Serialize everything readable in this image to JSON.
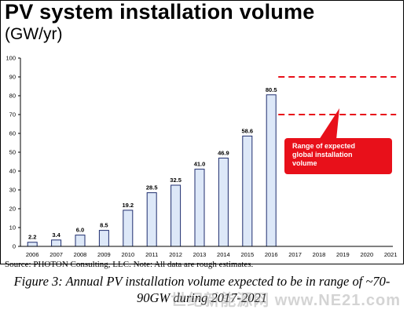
{
  "header": {
    "title": "PV system installation volume",
    "unit": "(GW/yr)"
  },
  "chart_data": {
    "type": "bar",
    "title": "PV system installation volume",
    "ylabel": "(GW/yr)",
    "xlabel": "",
    "ylim": [
      0,
      100
    ],
    "yticks": [
      0,
      10,
      20,
      30,
      40,
      50,
      60,
      70,
      80,
      90,
      100
    ],
    "categories": [
      "2006",
      "2007",
      "2008",
      "2009",
      "2010",
      "2011",
      "2012",
      "2013",
      "2014",
      "2015",
      "2016",
      "2017",
      "2018",
      "2019",
      "2020",
      "2021"
    ],
    "values": [
      2.2,
      3.4,
      6.0,
      8.5,
      19.2,
      28.5,
      32.5,
      41.0,
      46.9,
      58.6,
      80.5,
      null,
      null,
      null,
      null,
      null
    ],
    "data_labels": [
      "2.2",
      "3.4",
      "6.0",
      "8.5",
      "19.2",
      "28.5",
      "32.5",
      "41.0",
      "46.9",
      "58.6",
      "80.5",
      "",
      "",
      "",
      "",
      ""
    ],
    "expected_range": {
      "low": 70,
      "high": 90,
      "from_category": "2016",
      "to_category": "2021",
      "label": "Range of expected global installation volume"
    },
    "colors": {
      "bar_fill": "#dde8f8",
      "bar_stroke": "#1f2d6e",
      "range_line": "#e8101a",
      "callout_fill": "#e8101a",
      "callout_text": "#ffffff",
      "axis": "#000000"
    },
    "grid": false
  },
  "footer": {
    "source": "Source: PHOTON Consulting, LLC. Note: All data are rough estimates.",
    "caption": "Figure 3: Annual PV installation volume expected to be in range of ~70-90GW during 2017-2021"
  },
  "watermark": "世纪新能源网 www.NE21.com"
}
